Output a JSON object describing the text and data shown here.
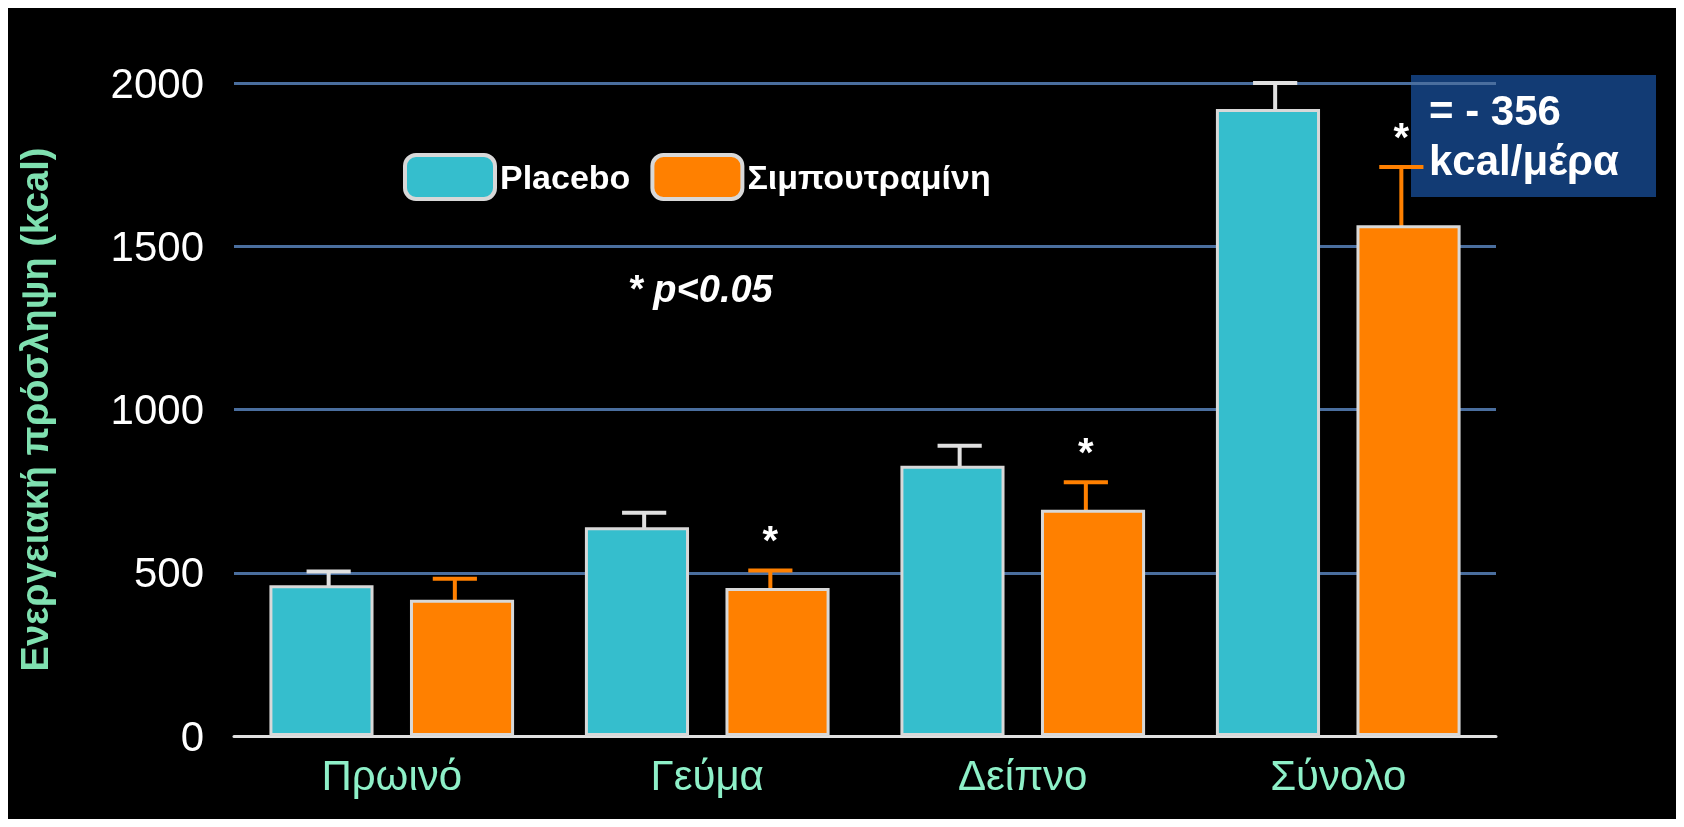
{
  "chart_data": {
    "type": "bar",
    "ylabel": "Ενεργειακή πρόσληψη (kcal)",
    "categories": [
      "Πρωινό",
      "Γεύμα",
      "Δείπνο",
      "Σύνολο"
    ],
    "series": [
      {
        "name": "Placebo",
        "color": "#35becd",
        "values": [
          462,
          639,
          828,
          1920
        ],
        "errors": [
          42,
          45,
          61,
          80
        ]
      },
      {
        "name": "Σιμπουτραμίνη",
        "color": "#ff8000",
        "values": [
          417,
          453,
          693,
          1564
        ],
        "errors": [
          65,
          54,
          84,
          179
        ],
        "value_labels": [
          null,
          "*",
          "*",
          "*"
        ]
      }
    ],
    "ylim": [
      0,
      2000
    ],
    "yticks": [
      0,
      500,
      1000,
      1500,
      2000
    ],
    "grid": "y",
    "legend": "top left",
    "annotations": [
      "* p<0.05",
      "= - 356\nkcal/μέρα"
    ]
  }
}
